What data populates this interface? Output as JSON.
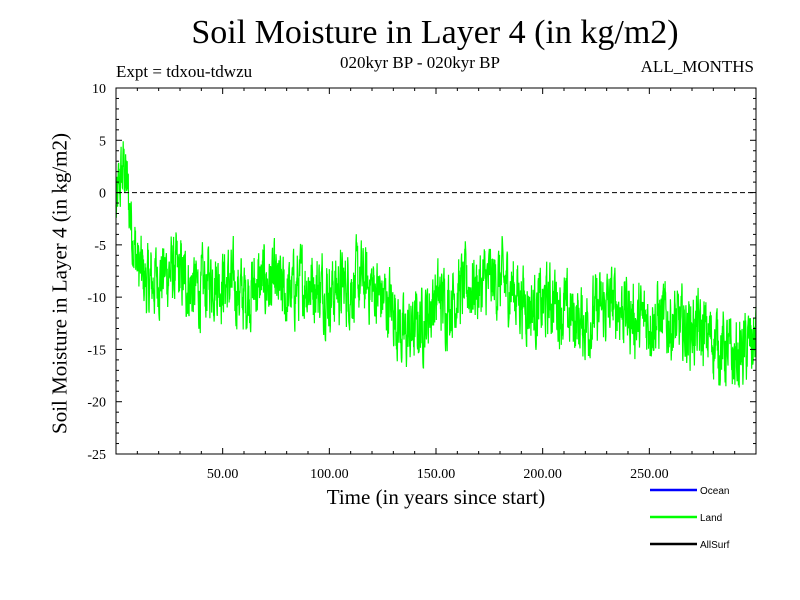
{
  "title": "Soil Moisture in Layer 4 (in kg/m2)",
  "subtitle": "020kyr BP - 020kyr BP",
  "expt_label": "Expt = tdxou-tdwzu",
  "months_label": "ALL_MONTHS",
  "chart_data": {
    "type": "line",
    "title": "Soil Moisture in Layer 4 (in kg/m2)",
    "xlabel": "Time (in years since start)",
    "ylabel": "Soil Moisture in Layer 4 (in kg/m2)",
    "xlim": [
      0,
      300
    ],
    "ylim": [
      -25,
      10
    ],
    "x_ticks": [
      50,
      100,
      150,
      200,
      250
    ],
    "x_tick_labels": [
      "50.00",
      "100.00",
      "150.00",
      "200.00",
      "250.00"
    ],
    "y_ticks": [
      -25,
      -20,
      -15,
      -10,
      -5,
      0,
      5,
      10
    ],
    "y_tick_labels": [
      "-25",
      "-20",
      "-15",
      "-10",
      "-5",
      "0",
      "5",
      "10"
    ],
    "reference_line": {
      "y": 0,
      "style": "dashed",
      "color": "#000000"
    },
    "legend": [
      {
        "name": "Ocean",
        "color": "#0000ff"
      },
      {
        "name": "Land",
        "color": "#00ff00"
      },
      {
        "name": "AllSurf",
        "color": "#000000"
      }
    ],
    "series": [
      {
        "name": "Land",
        "color": "#00ff00",
        "x": [
          0,
          2,
          4,
          6,
          8,
          10,
          15,
          20,
          25,
          30,
          35,
          40,
          45,
          50,
          55,
          60,
          65,
          70,
          75,
          80,
          85,
          90,
          95,
          100,
          105,
          110,
          115,
          120,
          125,
          130,
          135,
          140,
          145,
          150,
          155,
          160,
          165,
          170,
          175,
          180,
          185,
          190,
          195,
          200,
          205,
          210,
          215,
          220,
          225,
          230,
          235,
          240,
          245,
          250,
          255,
          260,
          265,
          270,
          275,
          280,
          285,
          290,
          295,
          300
        ],
        "y": [
          -2,
          1,
          2.5,
          -1,
          -4,
          -7,
          -9,
          -8,
          -7.5,
          -8,
          -9,
          -9.5,
          -8,
          -8.5,
          -9,
          -10,
          -9,
          -8.5,
          -9,
          -10,
          -9,
          -8.5,
          -9,
          -9.5,
          -9,
          -9,
          -8.5,
          -9,
          -10,
          -11,
          -14,
          -13,
          -12,
          -10,
          -10.5,
          -9.5,
          -9,
          -9,
          -8.5,
          -8.5,
          -9,
          -10,
          -11,
          -11,
          -10,
          -11.5,
          -12,
          -12.5,
          -11.5,
          -11,
          -10.5,
          -11.5,
          -12.5,
          -12,
          -12,
          -12.5,
          -13,
          -13,
          -13.5,
          -14,
          -15,
          -16,
          -15,
          -14
        ]
      }
    ]
  }
}
